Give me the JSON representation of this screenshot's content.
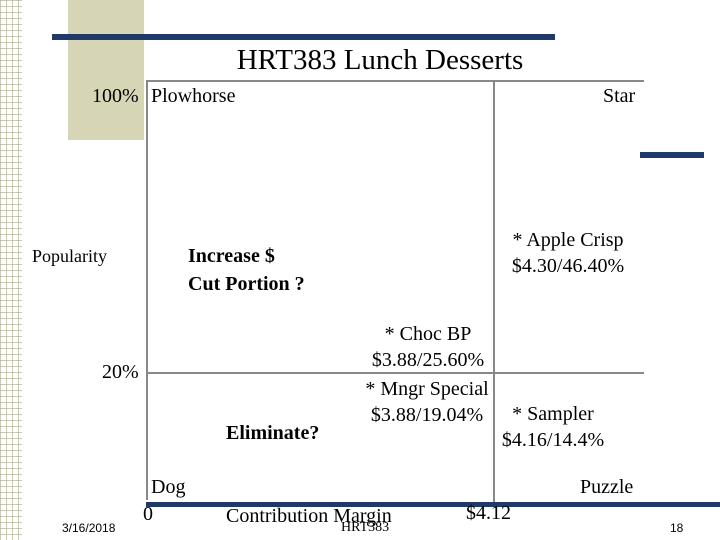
{
  "slide": {
    "title": "HRT383 Lunch Desserts",
    "footer_date": "3/16/2018",
    "footer_center": "HRT383",
    "page_number": "18"
  },
  "axes": {
    "y_top": "100%",
    "y_label": "Popularity",
    "y_threshold": "20%",
    "x_origin": "0",
    "x_label": "Contribution Margin",
    "x_threshold": "$4.12"
  },
  "quadrants": {
    "top_left": "Plowhorse",
    "top_right": "Star",
    "bottom_left": "Dog",
    "bottom_right": "Puzzle"
  },
  "notes": {
    "plowhorse_line1": "Increase $",
    "plowhorse_line2": "Cut Portion ?",
    "dog_note": "Eliminate?"
  },
  "items": [
    {
      "name": "* Apple Crisp",
      "values": "$4.30/46.40%"
    },
    {
      "name": "* Choc BP",
      "values": "$3.88/25.60%"
    },
    {
      "name": "* Mngr Special",
      "values": "$3.88/19.04%"
    },
    {
      "name": "* Sampler",
      "values": "$4.16/14.4%"
    }
  ]
}
